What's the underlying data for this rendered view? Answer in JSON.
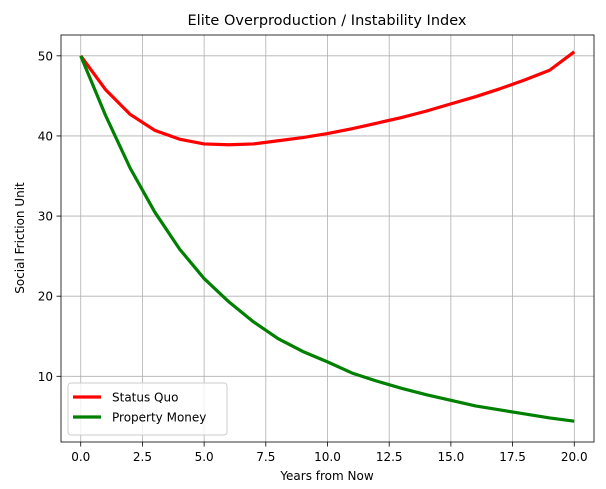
{
  "chart_data": {
    "type": "line",
    "title": "Elite Overproduction / Instability Index",
    "xlabel": "Years from Now",
    "ylabel": "Social Friction Unit",
    "xlim": [
      -0.8,
      20.8
    ],
    "ylim": [
      1.8,
      52.6
    ],
    "xticks": [
      0,
      2.5,
      5,
      7.5,
      10,
      12.5,
      15,
      17.5,
      20
    ],
    "xtick_labels": [
      "0.0",
      "2.5",
      "5.0",
      "7.5",
      "10.0",
      "12.5",
      "15.0",
      "17.5",
      "20.0"
    ],
    "yticks": [
      10,
      20,
      30,
      40,
      50
    ],
    "ytick_labels": [
      "10",
      "20",
      "30",
      "40",
      "50"
    ],
    "grid": true,
    "legend_position": "lower-left",
    "x": [
      0,
      1,
      2,
      3,
      4,
      5,
      6,
      7,
      8,
      9,
      10,
      11,
      12,
      13,
      14,
      15,
      16,
      17,
      18,
      19,
      20
    ],
    "series": [
      {
        "name": "Status Quo",
        "color": "#ff0000",
        "values": [
          50.0,
          45.8,
          42.7,
          40.7,
          39.6,
          39.0,
          38.9,
          39.0,
          39.4,
          39.8,
          40.3,
          40.9,
          41.6,
          42.3,
          43.1,
          44.0,
          44.9,
          45.9,
          47.0,
          48.2,
          50.5
        ]
      },
      {
        "name": "Property Money",
        "color": "#008000",
        "values": [
          50.0,
          42.6,
          36.0,
          30.5,
          25.9,
          22.2,
          19.3,
          16.8,
          14.7,
          13.1,
          11.8,
          10.4,
          9.4,
          8.5,
          7.7,
          7.0,
          6.3,
          5.8,
          5.3,
          4.8,
          4.4
        ]
      }
    ]
  }
}
